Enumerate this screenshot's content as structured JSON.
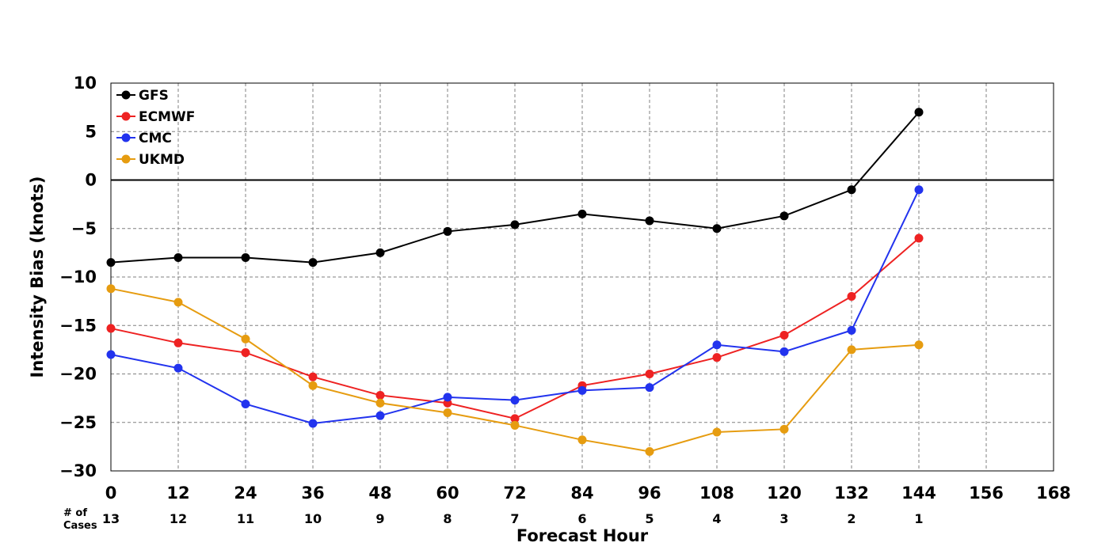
{
  "chart_data": {
    "type": "line",
    "xlabel": "Forecast Hour",
    "ylabel": "Intensity Bias (knots)",
    "xlim": [
      0,
      168
    ],
    "ylim": [
      -30,
      10
    ],
    "xticks": [
      "0",
      "12",
      "24",
      "36",
      "48",
      "60",
      "72",
      "84",
      "96",
      "108",
      "120",
      "132",
      "144",
      "156",
      "168"
    ],
    "yticks": [
      "10",
      "5",
      "0",
      "−5",
      "−10",
      "−15",
      "−20",
      "−25",
      "−30"
    ],
    "grid": true,
    "legend_position": "top-left",
    "cases_title_line1": "# of",
    "cases_title_line2": "Cases",
    "cases": [
      {
        "x": 0,
        "n": "13"
      },
      {
        "x": 12,
        "n": "12"
      },
      {
        "x": 24,
        "n": "11"
      },
      {
        "x": 36,
        "n": "10"
      },
      {
        "x": 48,
        "n": "9"
      },
      {
        "x": 60,
        "n": "8"
      },
      {
        "x": 72,
        "n": "7"
      },
      {
        "x": 84,
        "n": "6"
      },
      {
        "x": 96,
        "n": "5"
      },
      {
        "x": 108,
        "n": "4"
      },
      {
        "x": 120,
        "n": "3"
      },
      {
        "x": 132,
        "n": "2"
      },
      {
        "x": 144,
        "n": "1"
      }
    ],
    "x": [
      0,
      12,
      24,
      36,
      48,
      60,
      72,
      84,
      96,
      108,
      120,
      132,
      144
    ],
    "series": [
      {
        "name": "GFS",
        "color": "#000000",
        "values": [
          -8.5,
          -8.0,
          -8.0,
          -8.5,
          -7.5,
          -5.3,
          -4.6,
          -3.5,
          -4.2,
          -5.0,
          -3.7,
          -1.0,
          7.0
        ]
      },
      {
        "name": "ECMWF",
        "color": "#ee2222",
        "values": [
          -15.3,
          -16.8,
          -17.8,
          -20.3,
          -22.2,
          -23.0,
          -24.6,
          -21.2,
          -20.0,
          -18.3,
          -16.0,
          -12.0,
          -6.0
        ]
      },
      {
        "name": "CMC",
        "color": "#2233ee",
        "values": [
          -18.0,
          -19.4,
          -23.1,
          -25.1,
          -24.3,
          -22.4,
          -22.7,
          -21.7,
          -21.4,
          -17.0,
          -17.7,
          -15.5,
          -1.0
        ]
      },
      {
        "name": "UKMD",
        "color": "#e69c10",
        "values": [
          -11.2,
          -12.6,
          -16.4,
          -21.2,
          -23.0,
          -24.0,
          -25.3,
          -26.8,
          -28.0,
          -26.0,
          -25.7,
          -17.5,
          -17.0
        ]
      }
    ]
  }
}
